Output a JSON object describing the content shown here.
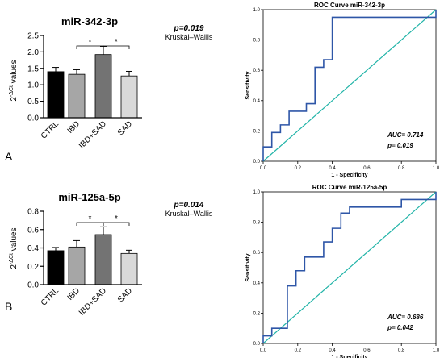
{
  "panel_labels": [
    "A",
    "B"
  ],
  "chart_data": [
    {
      "type": "bar",
      "title": "miR-342-3p",
      "ylabel": "2^-ΔCt values",
      "ylim": [
        0,
        2.5
      ],
      "yticks": [
        "0.0",
        "0.5",
        "1.0",
        "1.5",
        "2.0",
        "2.5"
      ],
      "categories": [
        "CTRL",
        "IBD",
        "IBD+SAD",
        "SAD"
      ],
      "values": [
        1.4,
        1.32,
        1.92,
        1.27
      ],
      "errors": [
        0.13,
        0.14,
        0.25,
        0.14
      ],
      "bar_colors": [
        "#000000",
        "#a6a6a6",
        "#737373",
        "#d9d9d9"
      ],
      "significance": [
        {
          "from": 1,
          "to": 2,
          "label": "*"
        },
        {
          "from": 2,
          "to": 3,
          "label": "*"
        }
      ],
      "annotation": {
        "p": "p=0.019",
        "test": "Kruskal–Wallis"
      }
    },
    {
      "type": "line",
      "title": "ROC Curve miR-342-3p",
      "xlabel": "1 - Specificity",
      "ylabel": "Sensitivity",
      "xlim": [
        0,
        1
      ],
      "ylim": [
        0,
        1
      ],
      "ticks": [
        "0.0",
        "0.2",
        "0.4",
        "0.6",
        "0.8",
        "1.0"
      ],
      "roc": [
        [
          0,
          0
        ],
        [
          0,
          0.095
        ],
        [
          0.05,
          0.095
        ],
        [
          0.05,
          0.19
        ],
        [
          0.1,
          0.19
        ],
        [
          0.1,
          0.24
        ],
        [
          0.15,
          0.24
        ],
        [
          0.15,
          0.33
        ],
        [
          0.25,
          0.33
        ],
        [
          0.25,
          0.38
        ],
        [
          0.3,
          0.38
        ],
        [
          0.3,
          0.62
        ],
        [
          0.35,
          0.62
        ],
        [
          0.35,
          0.67
        ],
        [
          0.4,
          0.67
        ],
        [
          0.4,
          0.95
        ],
        [
          1,
          0.95
        ],
        [
          1,
          1
        ]
      ],
      "reference": [
        [
          0,
          0
        ],
        [
          1,
          1
        ]
      ],
      "line_color": "#2e56a7",
      "reference_color": "#22b4a8",
      "auc": "AUC= 0.714",
      "p": "p= 0.019"
    },
    {
      "type": "bar",
      "title": "miR-125a-5p",
      "ylabel": "2^-ΔCt values",
      "ylim": [
        0,
        0.8
      ],
      "yticks": [
        "0.0",
        "0.2",
        "0.4",
        "0.6",
        "0.8"
      ],
      "categories": [
        "CTRL",
        "IBD",
        "IBD+SAD",
        "SAD"
      ],
      "values": [
        0.37,
        0.41,
        0.545,
        0.34
      ],
      "errors": [
        0.035,
        0.07,
        0.085,
        0.035
      ],
      "bar_colors": [
        "#000000",
        "#a6a6a6",
        "#737373",
        "#d9d9d9"
      ],
      "significance": [
        {
          "from": 1,
          "to": 2,
          "label": "*"
        },
        {
          "from": 2,
          "to": 3,
          "label": "*"
        }
      ],
      "annotation": {
        "p": "p=0.014",
        "test": "Kruskal–Wallis"
      }
    },
    {
      "type": "line",
      "title": "ROC Curve miR-125a-5p",
      "xlabel": "1 - Specificity",
      "ylabel": "Sensitivity",
      "xlim": [
        0,
        1
      ],
      "ylim": [
        0,
        1
      ],
      "ticks": [
        "0.0",
        "0.2",
        "0.4",
        "0.6",
        "0.8",
        "1.0"
      ],
      "roc": [
        [
          0,
          0
        ],
        [
          0,
          0.05
        ],
        [
          0.05,
          0.05
        ],
        [
          0.05,
          0.1
        ],
        [
          0.14,
          0.1
        ],
        [
          0.14,
          0.38
        ],
        [
          0.19,
          0.38
        ],
        [
          0.19,
          0.48
        ],
        [
          0.24,
          0.48
        ],
        [
          0.24,
          0.57
        ],
        [
          0.35,
          0.57
        ],
        [
          0.35,
          0.67
        ],
        [
          0.4,
          0.67
        ],
        [
          0.4,
          0.76
        ],
        [
          0.45,
          0.76
        ],
        [
          0.45,
          0.86
        ],
        [
          0.5,
          0.86
        ],
        [
          0.5,
          0.9
        ],
        [
          0.8,
          0.9
        ],
        [
          0.8,
          0.95
        ],
        [
          1,
          0.95
        ],
        [
          1,
          1
        ]
      ],
      "reference": [
        [
          0,
          0
        ],
        [
          1,
          1
        ]
      ],
      "line_color": "#2e56a7",
      "reference_color": "#22b4a8",
      "auc": "AUC= 0.686",
      "p": "p= 0.042"
    }
  ]
}
